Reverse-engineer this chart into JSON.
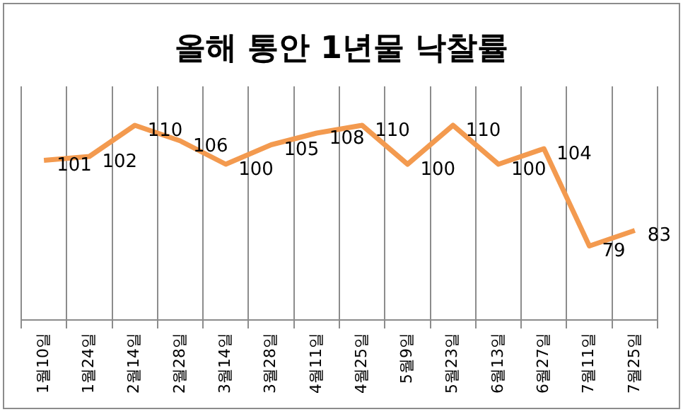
{
  "chart_data": {
    "type": "line",
    "title": "올해 통안 1년물 낙찰률",
    "categories": [
      "1월10일",
      "1월24일",
      "2월14일",
      "2월28일",
      "3월14일",
      "3월28일",
      "4월11일",
      "4월25일",
      "5월9일",
      "5월23일",
      "6월13일",
      "6월27일",
      "7월11일",
      "7월25일"
    ],
    "series": [
      {
        "color": "#f39a4f",
        "values": [
          101,
          102,
          110,
          106,
          100,
          105,
          108,
          110,
          100,
          110,
          100,
          104,
          79,
          83
        ]
      }
    ],
    "ylim": [
      60,
      120
    ],
    "tick_labels": "x",
    "grid": "x",
    "legend": false,
    "marker": "none",
    "line_style": "solid",
    "data_labels": true
  }
}
